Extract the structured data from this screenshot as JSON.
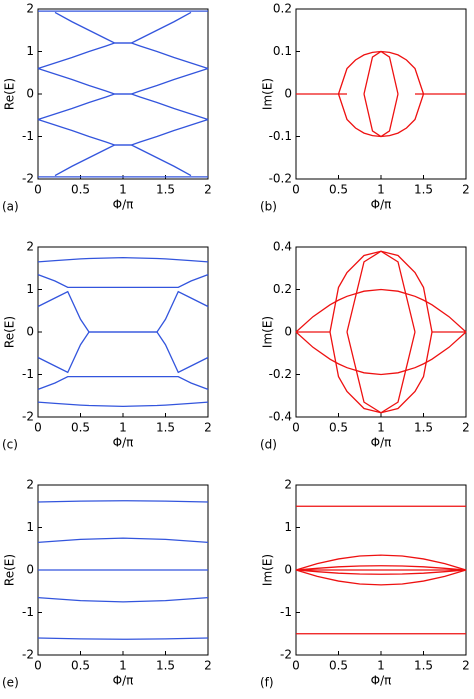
{
  "chart_data": [
    {
      "type": "line",
      "label": "(a)",
      "xlabel": "Φ/π",
      "ylabel": "Re(E)",
      "color": "#3355dd",
      "xlim": [
        0,
        2
      ],
      "xticks": [
        0,
        0.5,
        1,
        1.5,
        2
      ],
      "ylim": [
        -2,
        2
      ],
      "yticks": [
        -2,
        -1,
        0,
        1,
        2
      ],
      "x": [
        0,
        0.2,
        0.4,
        0.6,
        0.8,
        0.9,
        1,
        1.1,
        1.2,
        1.4,
        1.6,
        1.8,
        2
      ],
      "series": [
        {
          "values": [
            1.95,
            1.95,
            1.95,
            1.95,
            1.95,
            1.95,
            1.95,
            1.95,
            1.95,
            1.95,
            1.95,
            1.95,
            1.95
          ]
        },
        {
          "values": [
            null,
            1.92,
            1.7,
            1.5,
            1.3,
            1.2,
            1.2,
            1.2,
            1.3,
            1.5,
            1.7,
            1.92,
            null
          ]
        },
        {
          "values": [
            0.6,
            0.73,
            0.86,
            1.0,
            1.13,
            1.2,
            1.2,
            1.2,
            1.13,
            1.0,
            0.86,
            0.73,
            0.6
          ]
        },
        {
          "values": [
            0.6,
            0.47,
            0.34,
            0.2,
            0.07,
            0,
            0,
            0,
            0.07,
            0.2,
            0.34,
            0.47,
            0.6
          ]
        },
        {
          "values": [
            -0.6,
            -0.47,
            -0.34,
            -0.2,
            -0.07,
            0,
            0,
            0,
            -0.07,
            -0.2,
            -0.34,
            -0.47,
            -0.6
          ]
        },
        {
          "values": [
            -0.6,
            -0.73,
            -0.86,
            -1.0,
            -1.13,
            -1.2,
            -1.2,
            -1.2,
            -1.13,
            -1.0,
            -0.86,
            -0.73,
            -0.6
          ]
        },
        {
          "values": [
            null,
            -1.92,
            -1.7,
            -1.5,
            -1.3,
            -1.2,
            -1.2,
            -1.2,
            -1.3,
            -1.5,
            -1.7,
            -1.92,
            null
          ]
        },
        {
          "values": [
            -1.95,
            -1.95,
            -1.95,
            -1.95,
            -1.95,
            -1.95,
            -1.95,
            -1.95,
            -1.95,
            -1.95,
            -1.95,
            -1.95,
            -1.95
          ]
        }
      ]
    },
    {
      "type": "line",
      "label": "(b)",
      "xlabel": "Φ/π",
      "ylabel": "Im(E)",
      "color": "#ee1111",
      "xlim": [
        0,
        2
      ],
      "xticks": [
        0,
        0.5,
        1,
        1.5,
        2
      ],
      "ylim": [
        -0.2,
        0.2
      ],
      "yticks": [
        -0.2,
        -0.1,
        0,
        0.1,
        0.2
      ],
      "x": [
        0,
        0.5,
        0.6,
        0.7,
        0.8,
        0.9,
        1,
        1.1,
        1.2,
        1.3,
        1.4,
        1.5,
        2
      ],
      "series": [
        {
          "values": [
            0,
            0,
            0,
            null,
            null,
            null,
            null,
            null,
            null,
            null,
            0,
            0,
            0
          ]
        },
        {
          "values": [
            null,
            0,
            0.06,
            0.08,
            0.092,
            0.098,
            0.1,
            0.098,
            0.092,
            0.08,
            0.06,
            0,
            null
          ]
        },
        {
          "values": [
            null,
            0,
            -0.06,
            -0.08,
            -0.092,
            -0.098,
            -0.1,
            -0.098,
            -0.092,
            -0.08,
            -0.06,
            0,
            null
          ]
        },
        {
          "values": [
            null,
            null,
            null,
            null,
            0,
            0.087,
            0.1,
            0.087,
            0,
            null,
            null,
            null,
            null
          ]
        },
        {
          "values": [
            null,
            null,
            null,
            null,
            0,
            -0.087,
            -0.1,
            -0.087,
            0,
            null,
            null,
            null,
            null
          ]
        }
      ]
    },
    {
      "type": "line",
      "label": "(c)",
      "xlabel": "Φ/π",
      "ylabel": "Re(E)",
      "color": "#3355dd",
      "xlim": [
        0,
        2
      ],
      "xticks": [
        0,
        0.5,
        1,
        1.5,
        2
      ],
      "ylim": [
        -2,
        2
      ],
      "yticks": [
        -2,
        -1,
        0,
        1,
        2
      ],
      "x": [
        0,
        0.2,
        0.35,
        0.5,
        0.6,
        1,
        1.4,
        1.5,
        1.65,
        1.8,
        2
      ],
      "series": [
        {
          "values": [
            1.65,
            1.68,
            1.7,
            1.72,
            1.73,
            1.75,
            1.73,
            1.72,
            1.7,
            1.68,
            1.65
          ]
        },
        {
          "values": [
            1.35,
            1.2,
            1.05,
            1.05,
            1.05,
            1.05,
            1.05,
            1.05,
            1.05,
            1.2,
            1.35
          ]
        },
        {
          "values": [
            0.6,
            0.8,
            0.95,
            0.3,
            0,
            0,
            0,
            0.3,
            0.95,
            0.8,
            0.6
          ]
        },
        {
          "values": [
            -0.6,
            -0.8,
            -0.95,
            -0.3,
            0,
            0,
            0,
            -0.3,
            -0.95,
            -0.8,
            -0.6
          ]
        },
        {
          "values": [
            -1.35,
            -1.2,
            -1.05,
            -1.05,
            -1.05,
            -1.05,
            -1.05,
            -1.05,
            -1.05,
            -1.2,
            -1.35
          ]
        },
        {
          "values": [
            -1.65,
            -1.68,
            -1.7,
            -1.72,
            -1.73,
            -1.75,
            -1.73,
            -1.72,
            -1.7,
            -1.68,
            -1.65
          ]
        }
      ]
    },
    {
      "type": "line",
      "label": "(d)",
      "xlabel": "Φ/π",
      "ylabel": "Im(E)",
      "color": "#ee1111",
      "xlim": [
        0,
        2
      ],
      "xticks": [
        0,
        0.5,
        1,
        1.5,
        2
      ],
      "ylim": [
        -0.4,
        0.4
      ],
      "yticks": [
        -0.4,
        -0.2,
        0,
        0.2,
        0.4
      ],
      "x": [
        0,
        0.2,
        0.4,
        0.5,
        0.6,
        0.8,
        1,
        1.2,
        1.4,
        1.5,
        1.6,
        1.8,
        2
      ],
      "series": [
        {
          "values": [
            0,
            0,
            0,
            null,
            null,
            null,
            null,
            null,
            null,
            null,
            0,
            0,
            0
          ]
        },
        {
          "values": [
            null,
            null,
            0,
            0.21,
            0.28,
            0.36,
            0.38,
            0.36,
            0.28,
            0.21,
            0,
            null,
            null
          ]
        },
        {
          "values": [
            null,
            null,
            0,
            -0.21,
            -0.28,
            -0.36,
            -0.38,
            -0.36,
            -0.28,
            -0.21,
            0,
            null,
            null
          ]
        },
        {
          "values": [
            null,
            null,
            null,
            null,
            0,
            0.33,
            0.38,
            0.33,
            0,
            null,
            null,
            null,
            null
          ]
        },
        {
          "values": [
            null,
            null,
            null,
            null,
            0,
            -0.33,
            -0.38,
            -0.33,
            0,
            null,
            null,
            null,
            null
          ]
        },
        {
          "values": [
            0,
            0.072,
            0.128,
            0.15,
            0.168,
            0.192,
            0.2,
            0.192,
            0.168,
            0.15,
            0.128,
            0.072,
            0
          ]
        },
        {
          "values": [
            0,
            -0.072,
            -0.128,
            -0.15,
            -0.168,
            -0.192,
            -0.2,
            -0.192,
            -0.168,
            -0.15,
            -0.128,
            -0.072,
            0
          ]
        }
      ]
    },
    {
      "type": "line",
      "label": "(e)",
      "xlabel": "Φ/π",
      "ylabel": "Re(E)",
      "color": "#3355dd",
      "xlim": [
        0,
        2
      ],
      "xticks": [
        0,
        0.5,
        1,
        1.5,
        2
      ],
      "ylim": [
        -2,
        2
      ],
      "yticks": [
        -2,
        -1,
        0,
        1,
        2
      ],
      "x": [
        0,
        0.5,
        1,
        1.5,
        2
      ],
      "series": [
        {
          "values": [
            1.6,
            1.62,
            1.63,
            1.62,
            1.6
          ]
        },
        {
          "values": [
            0.65,
            0.72,
            0.75,
            0.72,
            0.65
          ]
        },
        {
          "values": [
            0,
            0,
            0,
            0,
            0
          ]
        },
        {
          "values": [
            -0.65,
            -0.72,
            -0.75,
            -0.72,
            -0.65
          ]
        },
        {
          "values": [
            -1.6,
            -1.62,
            -1.63,
            -1.62,
            -1.6
          ]
        }
      ]
    },
    {
      "type": "line",
      "label": "(f)",
      "xlabel": "Φ/π",
      "ylabel": "Im(E)",
      "color": "#ee1111",
      "xlim": [
        0,
        2
      ],
      "xticks": [
        0,
        0.5,
        1,
        1.5,
        2
      ],
      "ylim": [
        -2,
        2
      ],
      "yticks": [
        -2,
        -1,
        0,
        1,
        2
      ],
      "x": [
        0,
        0.25,
        0.5,
        0.75,
        1,
        1.25,
        1.5,
        1.75,
        2
      ],
      "series": [
        {
          "values": [
            1.5,
            1.5,
            1.5,
            1.5,
            1.5,
            1.5,
            1.5,
            1.5,
            1.5
          ]
        },
        {
          "values": [
            0,
            0.15,
            0.26,
            0.33,
            0.35,
            0.33,
            0.26,
            0.15,
            0
          ]
        },
        {
          "values": [
            0,
            0.04,
            0.075,
            0.094,
            0.1,
            0.094,
            0.075,
            0.04,
            0
          ]
        },
        {
          "values": [
            0,
            0,
            0,
            0,
            0,
            0,
            0,
            0,
            0
          ]
        },
        {
          "values": [
            0,
            -0.04,
            -0.075,
            -0.094,
            -0.1,
            -0.094,
            -0.075,
            -0.04,
            0
          ]
        },
        {
          "values": [
            0,
            -0.15,
            -0.26,
            -0.33,
            -0.35,
            -0.33,
            -0.26,
            -0.15,
            0
          ]
        },
        {
          "values": [
            -1.5,
            -1.5,
            -1.5,
            -1.5,
            -1.5,
            -1.5,
            -1.5,
            -1.5,
            -1.5
          ]
        }
      ]
    }
  ]
}
